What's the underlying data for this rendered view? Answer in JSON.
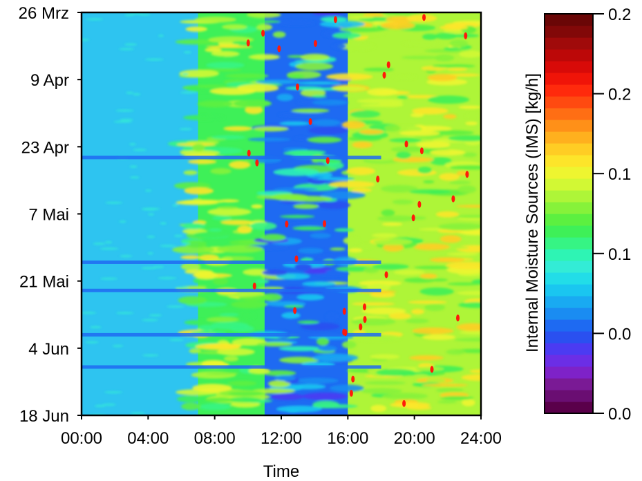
{
  "chart_data": {
    "type": "heatmap",
    "title": "",
    "xlabel": "Time",
    "ylabel": "",
    "x_ticks": [
      "00:00",
      "04:00",
      "08:00",
      "12:00",
      "16:00",
      "20:00",
      "24:00"
    ],
    "x_range": [
      "00:00",
      "24:00"
    ],
    "y_ticks": [
      "26 Mrz",
      "9 Apr",
      "23 Apr",
      "7 Mai",
      "21 Mai",
      "4 Jun",
      "18 Jun"
    ],
    "y_range": [
      "26 Mrz",
      "18 Jun"
    ],
    "colorbar": {
      "label": "Internal Moisture Sources (IMS) [kg/h]",
      "ticks": [
        "0.2",
        "0.2",
        "0.1",
        "0.1",
        "0.0",
        "0.0"
      ],
      "range": [
        0.0,
        0.25
      ],
      "colors": [
        "#5a004a",
        "#6a0e72",
        "#7a1a95",
        "#7e22c8",
        "#6b2ee6",
        "#4b3bf2",
        "#2a50f0",
        "#1e6af2",
        "#1a8cf2",
        "#19aaf2",
        "#1ac6f0",
        "#22dde8",
        "#33ecd6",
        "#2ef4b4",
        "#36f484",
        "#3ef058",
        "#5cf040",
        "#86f23a",
        "#aef538",
        "#d2f834",
        "#eef530",
        "#fde52a",
        "#ffcd24",
        "#ffb01e",
        "#ff9018",
        "#ff6e14",
        "#ff4a10",
        "#ff2a0c",
        "#f01408",
        "#d80a08",
        "#bc0808",
        "#a00a0a",
        "#820808",
        "#6a0606"
      ]
    },
    "grid": false,
    "legend": "none",
    "regions": [
      {
        "x_from": "00:00",
        "x_to": "06:30",
        "level": "low (~0.02-0.04)",
        "color": "#2ec4f0"
      },
      {
        "x_from": "07:00",
        "x_to": "11:00",
        "level": "mixed (~0.04-0.12)",
        "color": "#3ef058"
      },
      {
        "x_from": "11:00",
        "x_to": "16:00",
        "level": "low-mixed (~0.01-0.08)",
        "color": "#1e6af2"
      },
      {
        "x_from": "16:00",
        "x_to": "24:00",
        "level": "moderate (~0.06-0.12)",
        "color": "#aef538"
      }
    ],
    "colors": {
      "low_band": "#2ec4f0",
      "horizontal_bands": "#1e6af2",
      "mid_day": "#3ef058",
      "evening": "#d2f834",
      "peaks": "#ff1a0a"
    }
  }
}
